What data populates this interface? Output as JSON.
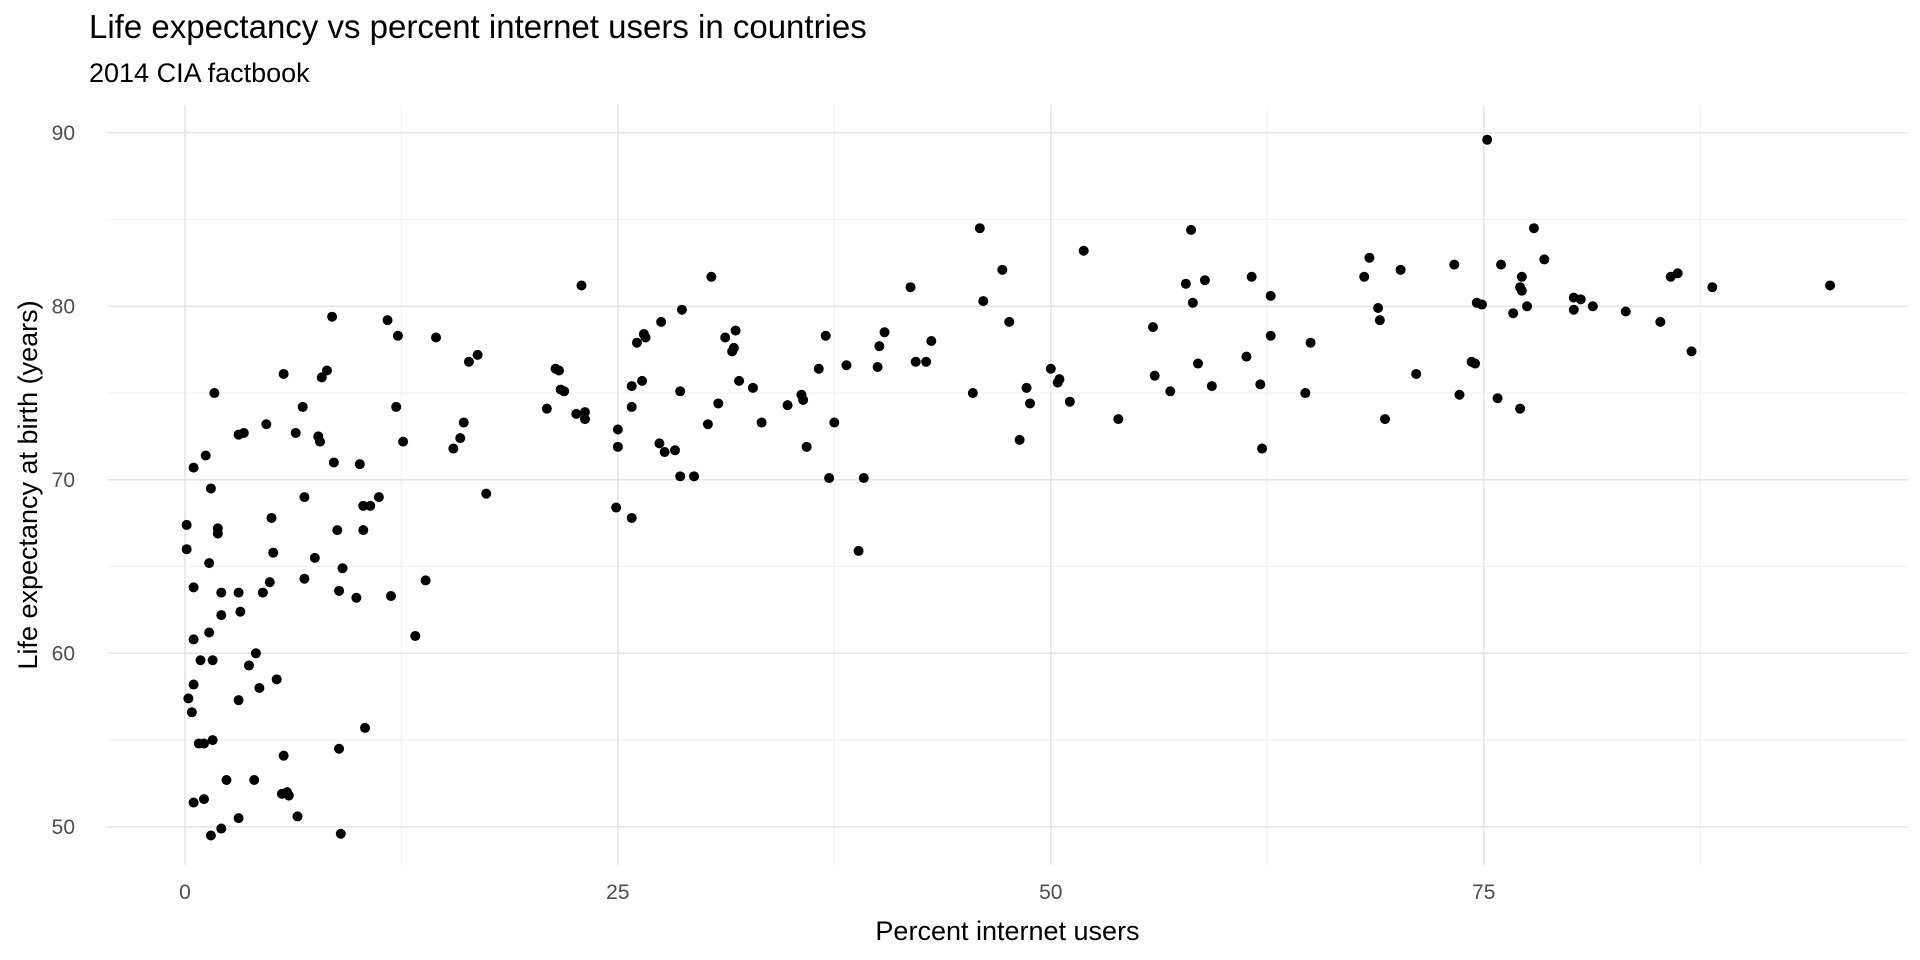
{
  "chart_data": {
    "type": "scatter",
    "title": "Life expectancy vs percent internet users in countries",
    "subtitle": "2014 CIA factbook",
    "xlabel": "Percent internet users",
    "ylabel": "Life expectancy at birth (years)",
    "xlim": [
      -4.5,
      99.5
    ],
    "ylim": [
      47.8,
      91.6
    ],
    "x_ticks": [
      0,
      25,
      50,
      75
    ],
    "y_ticks": [
      50,
      60,
      70,
      80,
      90
    ],
    "grid": true,
    "legend": "none",
    "point_color": "#000000",
    "points": [
      [
        0.1,
        67.4
      ],
      [
        0.1,
        66.0
      ],
      [
        0.2,
        57.4
      ],
      [
        0.4,
        56.6
      ],
      [
        0.5,
        58.2
      ],
      [
        0.5,
        60.8
      ],
      [
        0.5,
        63.8
      ],
      [
        0.5,
        70.7
      ],
      [
        0.5,
        51.4
      ],
      [
        0.8,
        54.8
      ],
      [
        0.9,
        59.6
      ],
      [
        1.1,
        54.8
      ],
      [
        1.1,
        51.6
      ],
      [
        1.2,
        71.4
      ],
      [
        1.4,
        65.2
      ],
      [
        1.4,
        61.2
      ],
      [
        1.5,
        69.5
      ],
      [
        1.6,
        59.6
      ],
      [
        1.6,
        55.0
      ],
      [
        1.5,
        49.5
      ],
      [
        1.7,
        75.0
      ],
      [
        1.9,
        67.2
      ],
      [
        1.9,
        66.9
      ],
      [
        2.1,
        63.5
      ],
      [
        2.1,
        62.2
      ],
      [
        2.1,
        49.9
      ],
      [
        2.4,
        52.7
      ],
      [
        3.1,
        72.6
      ],
      [
        3.4,
        72.7
      ],
      [
        3.1,
        63.5
      ],
      [
        3.2,
        62.4
      ],
      [
        3.1,
        57.3
      ],
      [
        3.1,
        50.5
      ],
      [
        3.7,
        59.3
      ],
      [
        4.0,
        52.7
      ],
      [
        4.1,
        60.0
      ],
      [
        4.3,
        58.0
      ],
      [
        4.5,
        63.5
      ],
      [
        4.7,
        73.2
      ],
      [
        4.9,
        64.1
      ],
      [
        5.0,
        67.8
      ],
      [
        5.1,
        65.8
      ],
      [
        5.3,
        58.5
      ],
      [
        5.7,
        76.1
      ],
      [
        5.7,
        54.1
      ],
      [
        5.6,
        51.9
      ],
      [
        5.9,
        52.0
      ],
      [
        6.0,
        51.8
      ],
      [
        6.4,
        72.7
      ],
      [
        6.5,
        50.6
      ],
      [
        6.8,
        74.2
      ],
      [
        6.9,
        69.0
      ],
      [
        6.9,
        64.3
      ],
      [
        7.5,
        65.5
      ],
      [
        7.7,
        72.5
      ],
      [
        7.8,
        72.2
      ],
      [
        7.9,
        75.9
      ],
      [
        8.2,
        76.3
      ],
      [
        8.5,
        79.4
      ],
      [
        8.6,
        71.0
      ],
      [
        8.8,
        67.1
      ],
      [
        8.9,
        63.6
      ],
      [
        8.9,
        54.5
      ],
      [
        9.1,
        64.9
      ],
      [
        9.0,
        49.6
      ],
      [
        9.9,
        63.2
      ],
      [
        10.1,
        70.9
      ],
      [
        10.3,
        68.5
      ],
      [
        10.3,
        67.1
      ],
      [
        10.4,
        55.7
      ],
      [
        10.7,
        68.5
      ],
      [
        11.2,
        69.0
      ],
      [
        11.7,
        79.2
      ],
      [
        11.9,
        63.3
      ],
      [
        12.2,
        74.2
      ],
      [
        12.3,
        78.3
      ],
      [
        12.6,
        72.2
      ],
      [
        13.3,
        61.0
      ],
      [
        13.9,
        64.2
      ],
      [
        14.5,
        78.2
      ],
      [
        15.5,
        71.8
      ],
      [
        15.9,
        72.4
      ],
      [
        16.1,
        73.3
      ],
      [
        16.4,
        76.8
      ],
      [
        16.9,
        77.2
      ],
      [
        17.4,
        69.2
      ],
      [
        20.9,
        74.1
      ],
      [
        21.4,
        76.4
      ],
      [
        21.6,
        76.3
      ],
      [
        21.7,
        75.2
      ],
      [
        21.9,
        75.1
      ],
      [
        22.6,
        73.8
      ],
      [
        22.9,
        81.2
      ],
      [
        23.1,
        73.9
      ],
      [
        23.1,
        73.5
      ],
      [
        24.9,
        68.4
      ],
      [
        25.0,
        72.9
      ],
      [
        25.0,
        71.9
      ],
      [
        25.8,
        67.8
      ],
      [
        25.8,
        74.2
      ],
      [
        25.8,
        75.4
      ],
      [
        26.1,
        77.9
      ],
      [
        26.4,
        75.7
      ],
      [
        26.5,
        78.4
      ],
      [
        26.6,
        78.2
      ],
      [
        27.4,
        72.1
      ],
      [
        27.5,
        79.1
      ],
      [
        27.7,
        71.6
      ],
      [
        28.3,
        71.7
      ],
      [
        28.6,
        70.2
      ],
      [
        28.6,
        75.1
      ],
      [
        28.7,
        79.8
      ],
      [
        29.4,
        70.2
      ],
      [
        30.2,
        73.2
      ],
      [
        30.4,
        81.7
      ],
      [
        30.8,
        74.4
      ],
      [
        31.2,
        78.2
      ],
      [
        31.6,
        77.4
      ],
      [
        31.7,
        77.6
      ],
      [
        31.8,
        78.6
      ],
      [
        32.0,
        75.7
      ],
      [
        32.8,
        75.3
      ],
      [
        33.3,
        73.3
      ],
      [
        34.8,
        74.3
      ],
      [
        35.6,
        74.9
      ],
      [
        35.7,
        74.6
      ],
      [
        35.9,
        71.9
      ],
      [
        36.6,
        76.4
      ],
      [
        37.0,
        78.3
      ],
      [
        37.2,
        70.1
      ],
      [
        37.5,
        73.3
      ],
      [
        38.2,
        76.6
      ],
      [
        38.9,
        65.9
      ],
      [
        39.2,
        70.1
      ],
      [
        40.0,
        76.5
      ],
      [
        40.1,
        77.7
      ],
      [
        40.4,
        78.5
      ],
      [
        41.9,
        81.1
      ],
      [
        42.2,
        76.8
      ],
      [
        42.8,
        76.8
      ],
      [
        43.1,
        78.0
      ],
      [
        45.5,
        75.0
      ],
      [
        45.9,
        84.5
      ],
      [
        46.1,
        80.3
      ],
      [
        47.2,
        82.1
      ],
      [
        47.6,
        79.1
      ],
      [
        48.2,
        72.3
      ],
      [
        48.6,
        75.3
      ],
      [
        48.8,
        74.4
      ],
      [
        50.0,
        76.4
      ],
      [
        50.4,
        75.6
      ],
      [
        50.5,
        75.8
      ],
      [
        51.1,
        74.5
      ],
      [
        51.9,
        83.2
      ],
      [
        53.9,
        73.5
      ],
      [
        55.9,
        78.8
      ],
      [
        56.0,
        76.0
      ],
      [
        56.9,
        75.1
      ],
      [
        57.8,
        81.3
      ],
      [
        58.1,
        84.4
      ],
      [
        58.2,
        80.2
      ],
      [
        58.5,
        76.7
      ],
      [
        58.9,
        81.5
      ],
      [
        59.3,
        75.4
      ],
      [
        61.3,
        77.1
      ],
      [
        61.6,
        81.7
      ],
      [
        62.1,
        75.5
      ],
      [
        62.2,
        71.8
      ],
      [
        62.7,
        80.6
      ],
      [
        62.7,
        78.3
      ],
      [
        64.7,
        75.0
      ],
      [
        65.0,
        77.9
      ],
      [
        68.1,
        81.7
      ],
      [
        68.4,
        82.8
      ],
      [
        68.9,
        79.9
      ],
      [
        69.0,
        79.2
      ],
      [
        69.3,
        73.5
      ],
      [
        70.2,
        82.1
      ],
      [
        71.1,
        76.1
      ],
      [
        73.3,
        82.4
      ],
      [
        73.6,
        74.9
      ],
      [
        74.3,
        76.8
      ],
      [
        74.5,
        76.7
      ],
      [
        74.6,
        80.2
      ],
      [
        74.9,
        80.1
      ],
      [
        75.2,
        89.6
      ],
      [
        75.8,
        74.7
      ],
      [
        76.0,
        82.4
      ],
      [
        76.7,
        79.6
      ],
      [
        77.1,
        81.1
      ],
      [
        77.1,
        74.1
      ],
      [
        77.2,
        81.7
      ],
      [
        77.2,
        80.9
      ],
      [
        77.5,
        80.0
      ],
      [
        77.9,
        84.5
      ],
      [
        78.5,
        82.7
      ],
      [
        80.2,
        80.5
      ],
      [
        80.2,
        79.8
      ],
      [
        80.6,
        80.4
      ],
      [
        81.3,
        80.0
      ],
      [
        83.2,
        79.7
      ],
      [
        85.2,
        79.1
      ],
      [
        85.8,
        81.7
      ],
      [
        86.2,
        81.9
      ],
      [
        87.0,
        77.4
      ],
      [
        88.2,
        81.1
      ],
      [
        95.0,
        81.2
      ]
    ]
  }
}
